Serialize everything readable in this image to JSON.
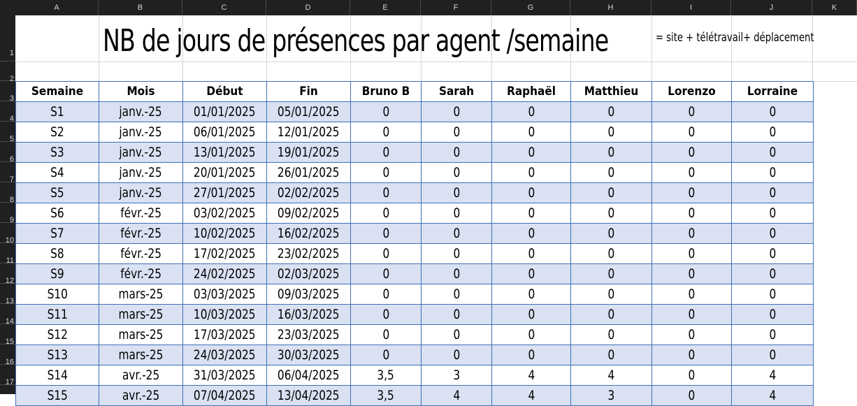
{
  "spreadsheet": {
    "column_headers": [
      "A",
      "B",
      "C",
      "D",
      "E",
      "F",
      "G",
      "H",
      "I",
      "J",
      "K"
    ],
    "row_numbers": [
      "1",
      "2",
      "3",
      "4",
      "5",
      "6",
      "7",
      "8",
      "9",
      "10",
      "11",
      "12",
      "13",
      "14",
      "15",
      "16",
      "17"
    ]
  },
  "sheet": {
    "title": "NB de jours de présences par agent /semaine",
    "note": "=  site + télétravail+ déplacement",
    "header_fill": "#d9e1f2",
    "border_color": "#3e6fb8"
  },
  "table": {
    "headers": [
      "Semaine",
      "Mois",
      "Début",
      "Fin",
      "Bruno B",
      "Sarah",
      "Raphaël",
      "Matthieu",
      "Lorenzo",
      "Lorraine"
    ],
    "rows": [
      [
        "S1",
        "janv.-25",
        "01/01/2025",
        "05/01/2025",
        "0",
        "0",
        "0",
        "0",
        "0",
        "0"
      ],
      [
        "S2",
        "janv.-25",
        "06/01/2025",
        "12/01/2025",
        "0",
        "0",
        "0",
        "0",
        "0",
        "0"
      ],
      [
        "S3",
        "janv.-25",
        "13/01/2025",
        "19/01/2025",
        "0",
        "0",
        "0",
        "0",
        "0",
        "0"
      ],
      [
        "S4",
        "janv.-25",
        "20/01/2025",
        "26/01/2025",
        "0",
        "0",
        "0",
        "0",
        "0",
        "0"
      ],
      [
        "S5",
        "janv.-25",
        "27/01/2025",
        "02/02/2025",
        "0",
        "0",
        "0",
        "0",
        "0",
        "0"
      ],
      [
        "S6",
        "févr.-25",
        "03/02/2025",
        "09/02/2025",
        "0",
        "0",
        "0",
        "0",
        "0",
        "0"
      ],
      [
        "S7",
        "févr.-25",
        "10/02/2025",
        "16/02/2025",
        "0",
        "0",
        "0",
        "0",
        "0",
        "0"
      ],
      [
        "S8",
        "févr.-25",
        "17/02/2025",
        "23/02/2025",
        "0",
        "0",
        "0",
        "0",
        "0",
        "0"
      ],
      [
        "S9",
        "févr.-25",
        "24/02/2025",
        "02/03/2025",
        "0",
        "0",
        "0",
        "0",
        "0",
        "0"
      ],
      [
        "S10",
        "mars-25",
        "03/03/2025",
        "09/03/2025",
        "0",
        "0",
        "0",
        "0",
        "0",
        "0"
      ],
      [
        "S11",
        "mars-25",
        "10/03/2025",
        "16/03/2025",
        "0",
        "0",
        "0",
        "0",
        "0",
        "0"
      ],
      [
        "S12",
        "mars-25",
        "17/03/2025",
        "23/03/2025",
        "0",
        "0",
        "0",
        "0",
        "0",
        "0"
      ],
      [
        "S13",
        "mars-25",
        "24/03/2025",
        "30/03/2025",
        "0",
        "0",
        "0",
        "0",
        "0",
        "0"
      ],
      [
        "S14",
        "avr.-25",
        "31/03/2025",
        "06/04/2025",
        "3,5",
        "3",
        "4",
        "4",
        "0",
        "4"
      ],
      [
        "S15",
        "avr.-25",
        "07/04/2025",
        "13/04/2025",
        "3,5",
        "4",
        "4",
        "3",
        "0",
        "4"
      ]
    ]
  }
}
